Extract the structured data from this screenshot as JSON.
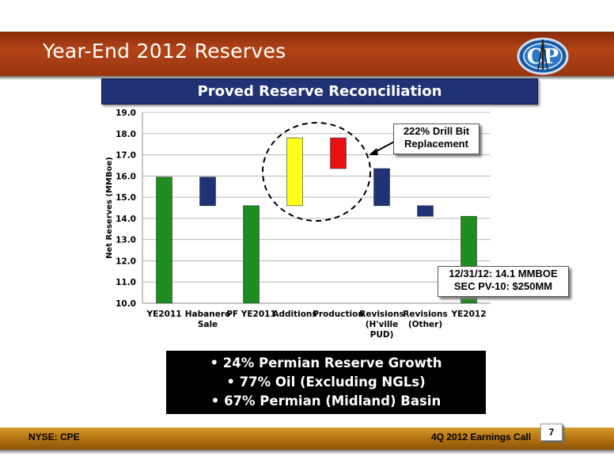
{
  "slide": {
    "title": "Year-End 2012 Reserves",
    "banner": "Proved Reserve Reconciliation",
    "callout_drill": [
      "222% Drill Bit",
      "Replacement"
    ],
    "callout_pv": [
      "12/31/12: 14.1 MMBOE",
      "SEC PV-10: $250MM"
    ],
    "bullets": [
      "• 24% Permian Reserve Growth",
      "• 77% Oil (Excluding NGLs)",
      "• 67% Permian (Midland) Basin"
    ],
    "footer_left": "NYSE: CPE",
    "footer_right": "4Q 2012 Earnings Call",
    "page_number": "7"
  },
  "chart_data": {
    "type": "bar",
    "subtype": "waterfall",
    "ylabel": "Net Reserves (MMBoe)",
    "xlabel": "",
    "ylim": [
      10.0,
      19.0
    ],
    "yticks": [
      "10.0",
      "11.0",
      "12.0",
      "13.0",
      "14.0",
      "15.0",
      "16.0",
      "17.0",
      "18.0",
      "19.0"
    ],
    "grid": true,
    "categories": [
      [
        "YE2011"
      ],
      [
        "Habanero",
        "Sale"
      ],
      [
        "PF YE2011"
      ],
      [
        "Additions"
      ],
      [
        "Production"
      ],
      [
        "Revisions",
        "(H'ville",
        "PUD)"
      ],
      [
        "Revisions",
        "(Other)"
      ],
      [
        "YE2012"
      ]
    ],
    "bars": [
      {
        "bottom": 10.0,
        "top": 15.95,
        "color": "#1e8c1e"
      },
      {
        "bottom": 14.6,
        "top": 15.95,
        "color": "#1f3276"
      },
      {
        "bottom": 10.0,
        "top": 14.6,
        "color": "#1e8c1e"
      },
      {
        "bottom": 14.6,
        "top": 17.8,
        "color": "#ffff1a"
      },
      {
        "bottom": 16.35,
        "top": 17.8,
        "color": "#e81010"
      },
      {
        "bottom": 14.6,
        "top": 16.35,
        "color": "#1f3276"
      },
      {
        "bottom": 14.1,
        "top": 14.6,
        "color": "#1f3276"
      },
      {
        "bottom": 10.0,
        "top": 14.1,
        "color": "#1e8c1e"
      }
    ]
  }
}
